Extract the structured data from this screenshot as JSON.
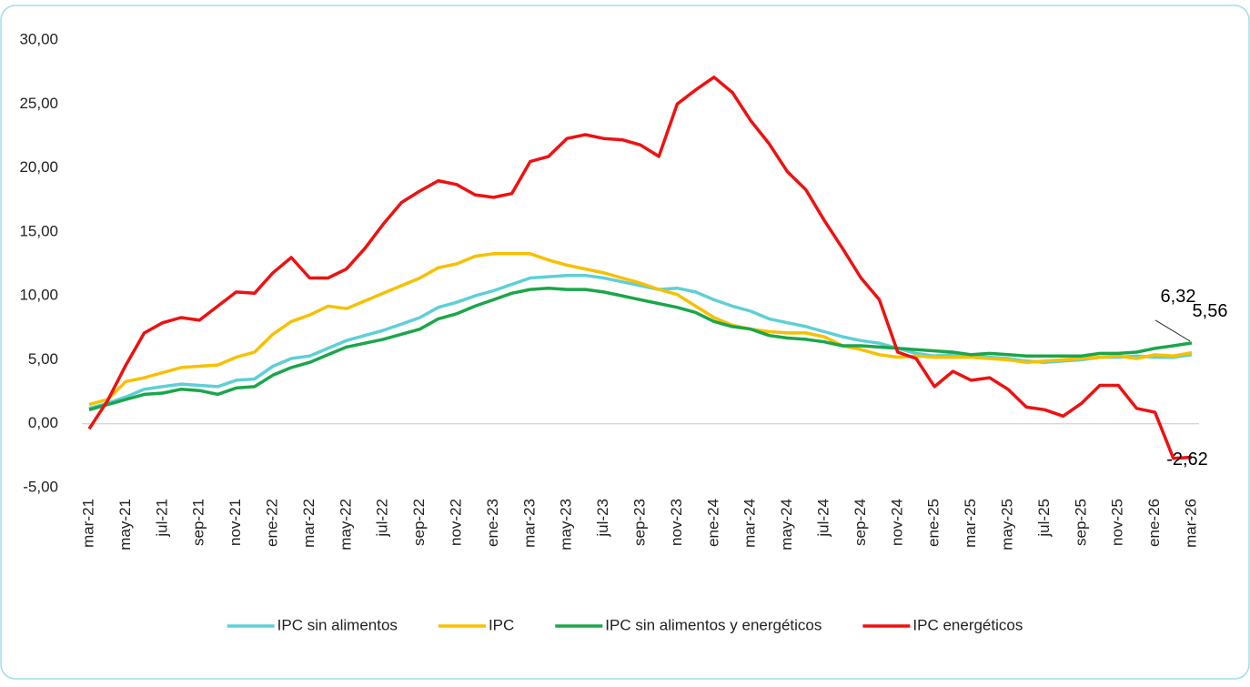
{
  "chart_data": {
    "type": "line",
    "categories": [
      "mar-21",
      null,
      "may-21",
      null,
      "jul-21",
      null,
      "sep-21",
      null,
      "nov-21",
      null,
      "ene-22",
      null,
      "mar-22",
      null,
      "may-22",
      null,
      "jul-22",
      null,
      "sep-22",
      null,
      "nov-22",
      null,
      "ene-23",
      null,
      "mar-23",
      null,
      "may-23",
      null,
      "jul-23",
      null,
      "sep-23",
      null,
      "nov-23",
      null,
      "ene-24",
      null,
      "mar-24",
      null,
      "may-24",
      null,
      "jul-24",
      null,
      "sep-24",
      null,
      "nov-24",
      null,
      "ene-25",
      null,
      "mar-25",
      null,
      "may-25",
      null,
      "jul-25",
      null,
      "sep-25",
      null,
      "nov-25",
      null,
      "ene-26",
      null,
      "mar-26"
    ],
    "ylim": [
      -5,
      30
    ],
    "yticks": [
      {
        "value": -5,
        "label": "-5,00"
      },
      {
        "value": 0,
        "label": "0,00"
      },
      {
        "value": 5,
        "label": "5,00"
      },
      {
        "value": 10,
        "label": "10,00"
      },
      {
        "value": 15,
        "label": "15,00"
      },
      {
        "value": 20,
        "label": "20,00"
      },
      {
        "value": 25,
        "label": "25,00"
      },
      {
        "value": 30,
        "label": "30,00"
      }
    ],
    "grid": false,
    "legend": "bottom",
    "series": [
      {
        "name": "IPC sin alimentos",
        "color": "#5ecfd6",
        "values": [
          1.2,
          1.6,
          2.1,
          2.7,
          2.9,
          3.1,
          3.0,
          2.9,
          3.4,
          3.5,
          4.5,
          5.1,
          5.3,
          5.9,
          6.5,
          6.9,
          7.3,
          7.8,
          8.3,
          9.1,
          9.5,
          10.0,
          10.4,
          10.9,
          11.4,
          11.5,
          11.6,
          11.6,
          11.4,
          11.1,
          10.8,
          10.5,
          10.6,
          10.3,
          9.7,
          9.2,
          8.8,
          8.2,
          7.9,
          7.6,
          7.2,
          6.8,
          6.5,
          6.3,
          5.9,
          5.5,
          5.3,
          5.4,
          5.3,
          5.2,
          5.1,
          4.9,
          4.8,
          4.9,
          5.0,
          5.2,
          5.2,
          5.3,
          5.2,
          5.2,
          5.4
        ]
      },
      {
        "name": "IPC",
        "color": "#f7c000",
        "values": [
          1.5,
          1.9,
          3.3,
          3.6,
          4.0,
          4.4,
          4.5,
          4.6,
          5.2,
          5.6,
          7.0,
          8.0,
          8.5,
          9.2,
          9.0,
          9.6,
          10.2,
          10.8,
          11.4,
          12.2,
          12.5,
          13.1,
          13.3,
          13.3,
          13.3,
          12.8,
          12.4,
          12.1,
          11.8,
          11.4,
          11.0,
          10.5,
          10.1,
          9.2,
          8.3,
          7.7,
          7.4,
          7.2,
          7.1,
          7.1,
          6.8,
          6.1,
          5.8,
          5.4,
          5.2,
          5.3,
          5.2,
          5.2,
          5.2,
          5.1,
          5.0,
          4.8,
          4.9,
          5.0,
          5.1,
          5.2,
          5.3,
          5.1,
          5.4,
          5.3,
          5.56
        ],
        "value_labels": [
          null,
          null,
          null,
          null,
          null,
          null,
          null,
          null,
          null,
          null,
          null,
          null,
          null,
          null,
          null,
          null,
          null,
          null,
          null,
          null,
          null,
          null,
          null,
          null,
          null,
          null,
          null,
          null,
          null,
          null,
          null,
          null,
          null,
          null,
          null,
          null,
          null,
          null,
          null,
          null,
          null,
          null,
          null,
          null,
          null,
          null,
          null,
          null,
          null,
          null,
          null,
          null,
          null,
          null,
          null,
          null,
          null,
          null,
          null,
          null,
          "5,56"
        ]
      },
      {
        "name": "IPC sin alimentos y energéticos",
        "color": "#1aa64a",
        "values": [
          1.1,
          1.5,
          1.9,
          2.3,
          2.4,
          2.7,
          2.6,
          2.3,
          2.8,
          2.9,
          3.8,
          4.4,
          4.8,
          5.4,
          6.0,
          6.3,
          6.6,
          7.0,
          7.4,
          8.2,
          8.6,
          9.2,
          9.7,
          10.2,
          10.5,
          10.6,
          10.5,
          10.5,
          10.3,
          10.0,
          9.7,
          9.4,
          9.1,
          8.7,
          8.0,
          7.6,
          7.4,
          6.9,
          6.7,
          6.6,
          6.4,
          6.1,
          6.1,
          6.0,
          5.9,
          5.8,
          5.7,
          5.6,
          5.4,
          5.5,
          5.4,
          5.3,
          5.3,
          5.3,
          5.3,
          5.5,
          5.5,
          5.6,
          5.9,
          6.1,
          6.32
        ],
        "value_labels": [
          null,
          null,
          null,
          null,
          null,
          null,
          null,
          null,
          null,
          null,
          null,
          null,
          null,
          null,
          null,
          null,
          null,
          null,
          null,
          null,
          null,
          null,
          null,
          null,
          null,
          null,
          null,
          null,
          null,
          null,
          null,
          null,
          null,
          null,
          null,
          null,
          null,
          null,
          null,
          null,
          null,
          null,
          null,
          null,
          null,
          null,
          null,
          null,
          null,
          null,
          null,
          null,
          null,
          null,
          null,
          null,
          null,
          null,
          null,
          null,
          "6,32"
        ]
      },
      {
        "name": "IPC energéticos",
        "color": "#ee1111",
        "values": [
          -0.4,
          1.8,
          4.6,
          7.1,
          7.9,
          8.3,
          8.1,
          9.2,
          10.3,
          10.2,
          11.8,
          13.0,
          11.4,
          11.4,
          12.1,
          13.7,
          15.6,
          17.3,
          18.2,
          19.0,
          18.7,
          17.9,
          17.7,
          18.0,
          20.5,
          20.9,
          22.3,
          22.6,
          22.3,
          22.2,
          21.8,
          20.9,
          25.0,
          26.1,
          27.1,
          25.9,
          23.7,
          21.9,
          19.7,
          18.3,
          15.9,
          13.7,
          11.4,
          9.7,
          5.6,
          5.1,
          2.9,
          4.1,
          3.4,
          3.6,
          2.7,
          1.3,
          1.1,
          0.6,
          1.6,
          3.0,
          3.0,
          1.2,
          0.9,
          -2.7,
          -2.62
        ],
        "value_labels": [
          null,
          null,
          null,
          null,
          null,
          null,
          null,
          null,
          null,
          null,
          null,
          null,
          null,
          null,
          null,
          null,
          null,
          null,
          null,
          null,
          null,
          null,
          null,
          null,
          null,
          null,
          null,
          null,
          null,
          null,
          null,
          null,
          null,
          null,
          null,
          null,
          null,
          null,
          null,
          null,
          null,
          null,
          null,
          null,
          null,
          null,
          null,
          null,
          null,
          null,
          null,
          null,
          null,
          null,
          null,
          null,
          null,
          null,
          null,
          null,
          "-2,62"
        ]
      }
    ]
  }
}
